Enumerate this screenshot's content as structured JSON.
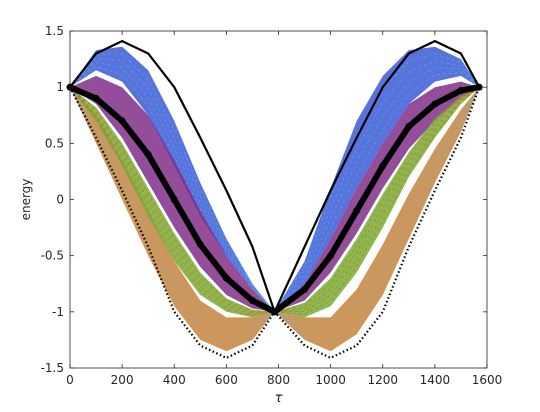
{
  "chart_data": {
    "type": "line",
    "title": "",
    "xlabel": "τ",
    "ylabel": "energy",
    "xlim": [
      0,
      1600
    ],
    "ylim": [
      -1.5,
      1.5
    ],
    "x_ticks": [
      "0",
      "200",
      "400",
      "600",
      "800",
      "1000",
      "1200",
      "1400",
      "1600"
    ],
    "y_ticks": [
      "-1.5",
      "-1",
      "-0.5",
      "0",
      "0.5",
      "1",
      "1.5"
    ],
    "grid": false,
    "legend": "none",
    "colors": {
      "blue": "#3b5bd6",
      "purple": "#7e2f8e",
      "orange": "#c8823a",
      "green": "#77ac30",
      "lightblue": "#4dbeee",
      "red": "#d95319",
      "black": "#000000"
    },
    "series": [
      {
        "style": "solid black envelope (upper)",
        "x": [
          0,
          100,
          200,
          300,
          400,
          500,
          600,
          700,
          785,
          900,
          1000,
          1100,
          1200,
          1300,
          1400,
          1500,
          1570
        ],
        "y": [
          1.0,
          1.3,
          1.41,
          1.3,
          1.0,
          0.55,
          0.08,
          -0.42,
          -1.0,
          -0.42,
          0.08,
          0.55,
          1.0,
          1.3,
          1.41,
          1.3,
          1.0
        ]
      },
      {
        "style": "dotted black envelope (lower)",
        "x": [
          0,
          100,
          200,
          300,
          400,
          500,
          600,
          700,
          785,
          900,
          1000,
          1100,
          1200,
          1300,
          1400,
          1500,
          1570
        ],
        "y": [
          1.0,
          0.55,
          0.08,
          -0.42,
          -1.0,
          -1.3,
          -1.41,
          -1.3,
          -1.0,
          -1.3,
          -1.41,
          -1.3,
          -1.0,
          -0.42,
          0.08,
          0.55,
          1.0
        ]
      },
      {
        "style": "thick black markers (mean)",
        "x": [
          0,
          100,
          200,
          300,
          400,
          500,
          600,
          700,
          785,
          900,
          1000,
          1100,
          1200,
          1300,
          1400,
          1500,
          1570
        ],
        "y": [
          1.0,
          0.9,
          0.7,
          0.4,
          0.0,
          -0.4,
          -0.7,
          -0.9,
          -1.0,
          -0.8,
          -0.5,
          -0.1,
          0.3,
          0.65,
          0.85,
          0.97,
          1.0
        ]
      }
    ],
    "bands": [
      {
        "color": "blue",
        "upper": [
          1.0,
          1.33,
          1.36,
          1.15,
          0.7,
          0.15,
          -0.35,
          -0.75,
          -1.0,
          -0.55,
          0.1,
          0.7,
          1.1,
          1.33,
          1.36,
          1.25,
          1.0
        ],
        "lower": [
          1.0,
          1.15,
          1.05,
          0.75,
          0.3,
          -0.15,
          -0.5,
          -0.8,
          -1.0,
          -0.75,
          -0.35,
          0.1,
          0.5,
          0.85,
          1.05,
          1.1,
          1.0
        ]
      },
      {
        "color": "purple",
        "upper": [
          1.0,
          1.1,
          1.0,
          0.75,
          0.35,
          -0.1,
          -0.5,
          -0.8,
          -1.0,
          -0.75,
          -0.35,
          0.1,
          0.5,
          0.85,
          1.0,
          1.05,
          1.0
        ],
        "lower": [
          1.0,
          0.85,
          0.55,
          0.15,
          -0.25,
          -0.6,
          -0.85,
          -0.97,
          -1.0,
          -0.9,
          -0.65,
          -0.3,
          0.1,
          0.45,
          0.7,
          0.9,
          1.0
        ]
      },
      {
        "color": "orange",
        "upper": [
          1.0,
          0.75,
          0.35,
          -0.1,
          -0.55,
          -0.9,
          -1.05,
          -1.05,
          -1.0,
          -1.05,
          -1.05,
          -0.8,
          -0.4,
          0.05,
          0.45,
          0.8,
          1.0
        ],
        "lower": [
          1.0,
          0.5,
          0.0,
          -0.5,
          -0.95,
          -1.25,
          -1.35,
          -1.25,
          -1.0,
          -1.25,
          -1.35,
          -1.2,
          -0.85,
          -0.35,
          0.15,
          0.6,
          1.0
        ]
      },
      {
        "color": "green",
        "upper": [
          1.0,
          0.82,
          0.5,
          0.1,
          -0.3,
          -0.65,
          -0.88,
          -0.98,
          -1.0,
          -0.92,
          -0.7,
          -0.35,
          0.05,
          0.42,
          0.72,
          0.92,
          1.0
        ],
        "lower": [
          1.0,
          0.7,
          0.3,
          -0.15,
          -0.55,
          -0.85,
          -1.0,
          -1.05,
          -1.0,
          -1.05,
          -0.95,
          -0.65,
          -0.25,
          0.2,
          0.55,
          0.85,
          1.0
        ]
      }
    ]
  }
}
